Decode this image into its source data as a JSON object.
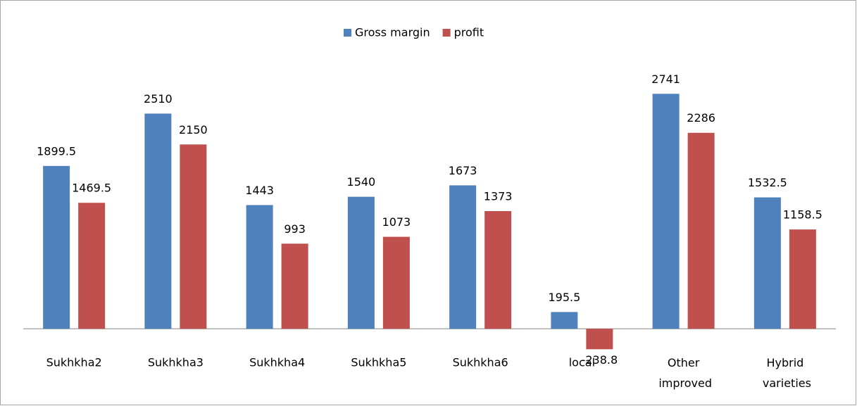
{
  "chart_data": {
    "type": "bar",
    "categories": [
      "Sukhkha2",
      "Sukhkha3",
      "Sukhkha4",
      "Sukhkha5",
      "Sukhkha6",
      "local",
      "Other improved",
      "Hybrid varieties"
    ],
    "series": [
      {
        "name": "Gross margin",
        "color": "#4f81bd",
        "values": [
          1899.5,
          2510,
          1443,
          1540,
          1673,
          195.5,
          2741,
          1532.5
        ]
      },
      {
        "name": "profit",
        "color": "#c0504d",
        "values": [
          1469.5,
          2150,
          993,
          1073,
          1373,
          -238.8,
          2286,
          1158.5
        ]
      }
    ],
    "ylim": [
      -400,
      3400
    ],
    "legend": "top"
  }
}
